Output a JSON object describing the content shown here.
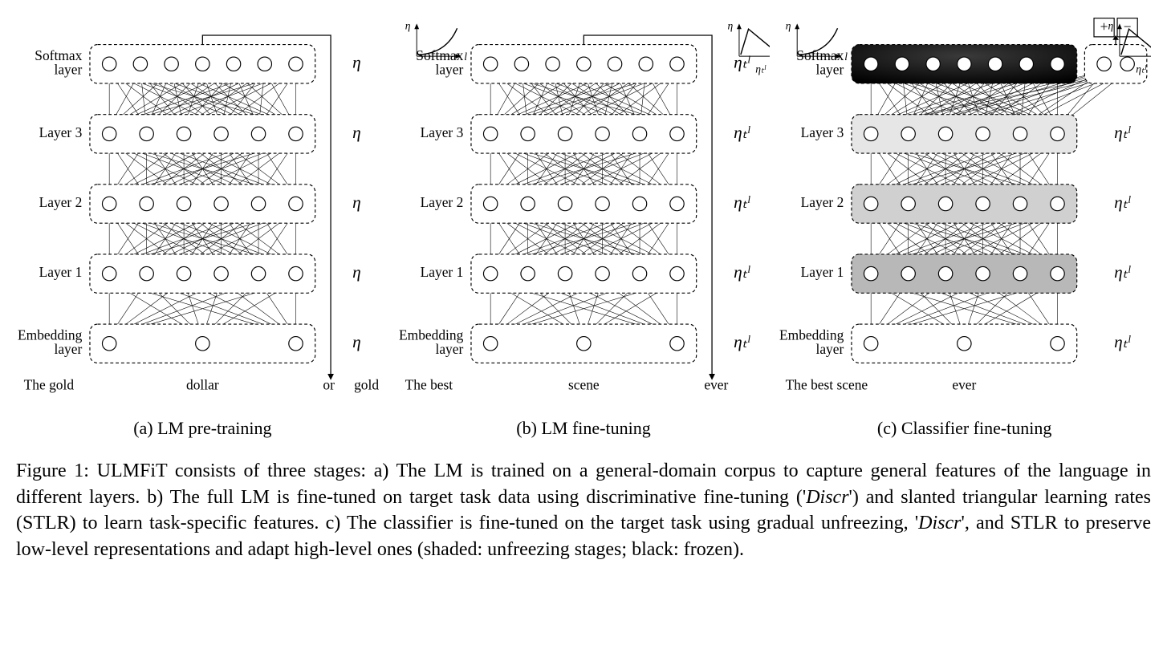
{
  "figure": {
    "panels": {
      "a": {
        "subcaption": "(a) LM pre-training",
        "layers": {
          "softmax": "Softmax\nlayer",
          "l3": "Layer 3",
          "l2": "Layer 2",
          "l1": "Layer 1",
          "emb": "Embedding\nlayer"
        },
        "layer_counts": {
          "softmax": 7,
          "l3": 6,
          "l2": 6,
          "l1": 6,
          "emb": 3
        },
        "lr_symbol": "η",
        "text_left": "The gold",
        "text_mid": "dollar",
        "text_right_a": "or",
        "text_right_b": "gold",
        "show_slanted_plot": false,
        "show_triangle_plot": false,
        "layer_fills": [
          "#ffffff",
          "#ffffff",
          "#ffffff",
          "#ffffff",
          "#ffffff"
        ],
        "softmax_fill": "#ffffff",
        "softmax_node_fill": "#ffffff",
        "classifier_nodes": 0,
        "arrow": true
      },
      "b": {
        "subcaption": "(b) LM fine-tuning",
        "layers": {
          "softmax": "Softmax\nlayer",
          "l3": "Layer 3",
          "l2": "Layer 2",
          "l1": "Layer 1",
          "emb": "Embedding\nlayer"
        },
        "layer_counts": {
          "softmax": 7,
          "l3": 6,
          "l2": 6,
          "l1": 6,
          "emb": 3
        },
        "lr_symbol": "ηₜˡ",
        "text_left": "The best",
        "text_mid": "scene",
        "text_right_a": "ever",
        "text_right_b": "",
        "show_slanted_plot": true,
        "show_triangle_plot": true,
        "layer_fills": [
          "#ffffff",
          "#ffffff",
          "#ffffff",
          "#ffffff",
          "#ffffff"
        ],
        "softmax_fill": "#ffffff",
        "softmax_node_fill": "#ffffff",
        "classifier_nodes": 0,
        "arrow": true
      },
      "c": {
        "subcaption": "(c) Classifier fine-tuning",
        "layers": {
          "softmax": "Softmax\nlayer",
          "l3": "Layer 3",
          "l2": "Layer 2",
          "l1": "Layer 1",
          "emb": "Embedding\nlayer"
        },
        "layer_counts": {
          "softmax": 7,
          "l3": 6,
          "l2": 6,
          "l1": 6,
          "emb": 3
        },
        "lr_symbol": "ηₜˡ",
        "text_left": "The best scene",
        "text_mid": "ever",
        "text_right_a": "",
        "text_right_b": "",
        "show_slanted_plot": true,
        "show_triangle_plot": true,
        "layer_fills": [
          "#f2f2f2",
          "#e6e6e6",
          "#d0d0d0",
          "#b8b8b8",
          "#ffffff"
        ],
        "softmax_fill": "#111111",
        "softmax_node_fill": "#ffffff",
        "classifier_nodes": 2,
        "arrow": false,
        "plusminus": {
          "plus": "+",
          "minus": "−"
        }
      }
    },
    "style": {
      "node_radius": 9,
      "node_stroke": "#000000",
      "node_fill": "#ffffff",
      "box_stroke": "#000000",
      "box_dash": "4,3",
      "box_rx": 10,
      "edge_stroke": "#000000",
      "edge_width": 0.6,
      "label_fontsize": 18,
      "lr_fontsize": 22,
      "text_fontsize": 18,
      "bg": "#ffffff",
      "plot_stroke": "#000000"
    },
    "caption": {
      "lead": "Figure 1: ",
      "body1": "ULMFiT consists of three stages: a) The LM is trained on a general-domain corpus to capture general features of the language in different layers. b) The full LM is fine-tuned on target task data using discriminative fine-tuning ('",
      "discr1": "Discr",
      "body2": "') and slanted triangular learning rates (STLR) to learn task-specific features. c) The classifier is fine-tuned on the target task using gradual unfreezing, '",
      "discr2": "Discr",
      "body3": "', and STLR to preserve low-level representations and adapt high-level ones (shaded: unfreezing stages; black: frozen)."
    }
  }
}
